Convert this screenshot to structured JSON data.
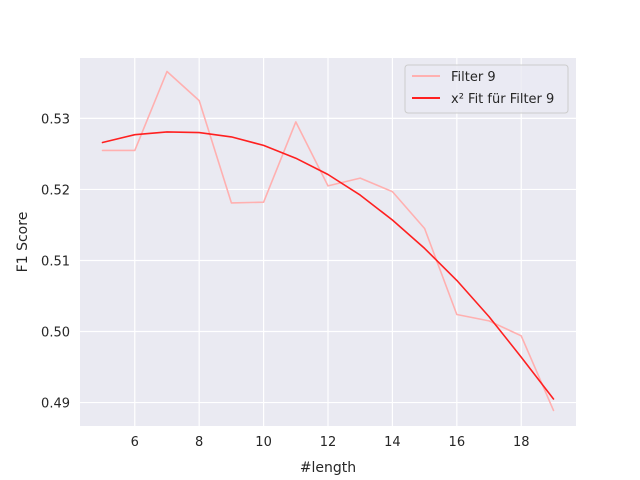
{
  "chart_data": {
    "type": "line",
    "title": "",
    "xlabel": "#length",
    "ylabel": "F1 Score",
    "xlim": [
      4.3,
      19.7
    ],
    "ylim": [
      0.4867,
      0.5385
    ],
    "xticks": [
      6,
      8,
      10,
      12,
      14,
      16,
      18
    ],
    "xtick_labels": [
      "6",
      "8",
      "10",
      "12",
      "14",
      "16",
      "18"
    ],
    "yticks": [
      0.49,
      0.5,
      0.51,
      0.52,
      0.53
    ],
    "ytick_labels": [
      "0.49",
      "0.50",
      "0.51",
      "0.52",
      "0.53"
    ],
    "grid": true,
    "legend_position": "top-right",
    "series": [
      {
        "name": "Filter 9",
        "color": "#ffb0b0",
        "x": [
          5,
          6,
          7,
          8,
          9,
          10,
          11,
          12,
          13,
          14,
          15,
          16,
          17,
          18,
          19
        ],
        "values": [
          0.5255,
          0.5255,
          0.5366,
          0.5325,
          0.5181,
          0.5182,
          0.5295,
          0.5205,
          0.5216,
          0.5197,
          0.5145,
          0.5024,
          0.5015,
          0.4994,
          0.4889
        ]
      },
      {
        "name": "x² Fit für Filter 9",
        "color": "#ff2020",
        "x": [
          5,
          6,
          7,
          8,
          9,
          10,
          11,
          12,
          13,
          14,
          15,
          16,
          17,
          18,
          19
        ],
        "values": [
          0.5266,
          0.5277,
          0.5281,
          0.528,
          0.5274,
          0.5262,
          0.5244,
          0.5221,
          0.5192,
          0.5157,
          0.5117,
          0.5072,
          0.5021,
          0.4964,
          0.4905
        ]
      }
    ]
  }
}
